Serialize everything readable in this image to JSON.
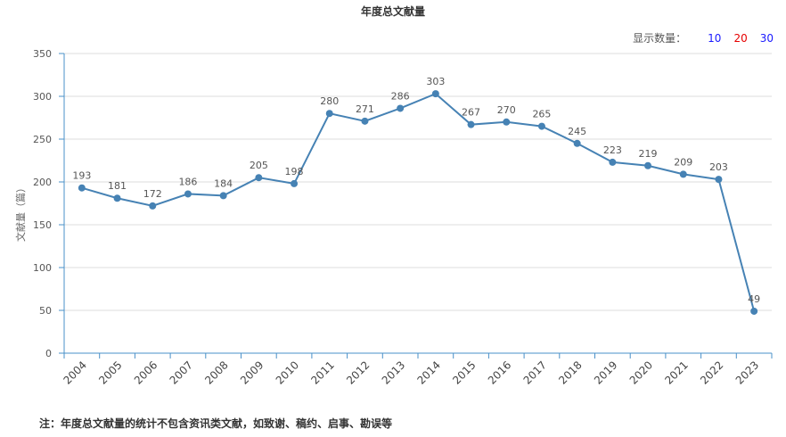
{
  "chart_data": {
    "type": "line",
    "title": "年度总文献量",
    "ylabel": "文献量（篇）",
    "xlabel": "",
    "categories": [
      "2004",
      "2005",
      "2006",
      "2007",
      "2008",
      "2009",
      "2010",
      "2011",
      "2012",
      "2013",
      "2014",
      "2015",
      "2016",
      "2017",
      "2018",
      "2019",
      "2020",
      "2021",
      "2022",
      "2023"
    ],
    "series": [
      {
        "values": [
          193,
          181,
          172,
          186,
          184,
          205,
          198,
          280,
          271,
          286,
          303,
          267,
          270,
          265,
          245,
          223,
          219,
          209,
          203,
          49
        ]
      }
    ],
    "ylim": [
      0,
      350
    ],
    "yticks": [
      0,
      50,
      100,
      150,
      200,
      250,
      300,
      350
    ],
    "grid": true,
    "line_color": "#4682b4"
  },
  "controls": {
    "show_count_label": "显示数量：",
    "options": [
      {
        "label": "10",
        "color": "#1a1aff"
      },
      {
        "label": "20",
        "color": "#e60000"
      },
      {
        "label": "30",
        "color": "#1a1aff"
      }
    ]
  },
  "footnote": "注：年度总文献量的统计不包含资讯类文献，如致谢、稿约、启事、勘误等"
}
